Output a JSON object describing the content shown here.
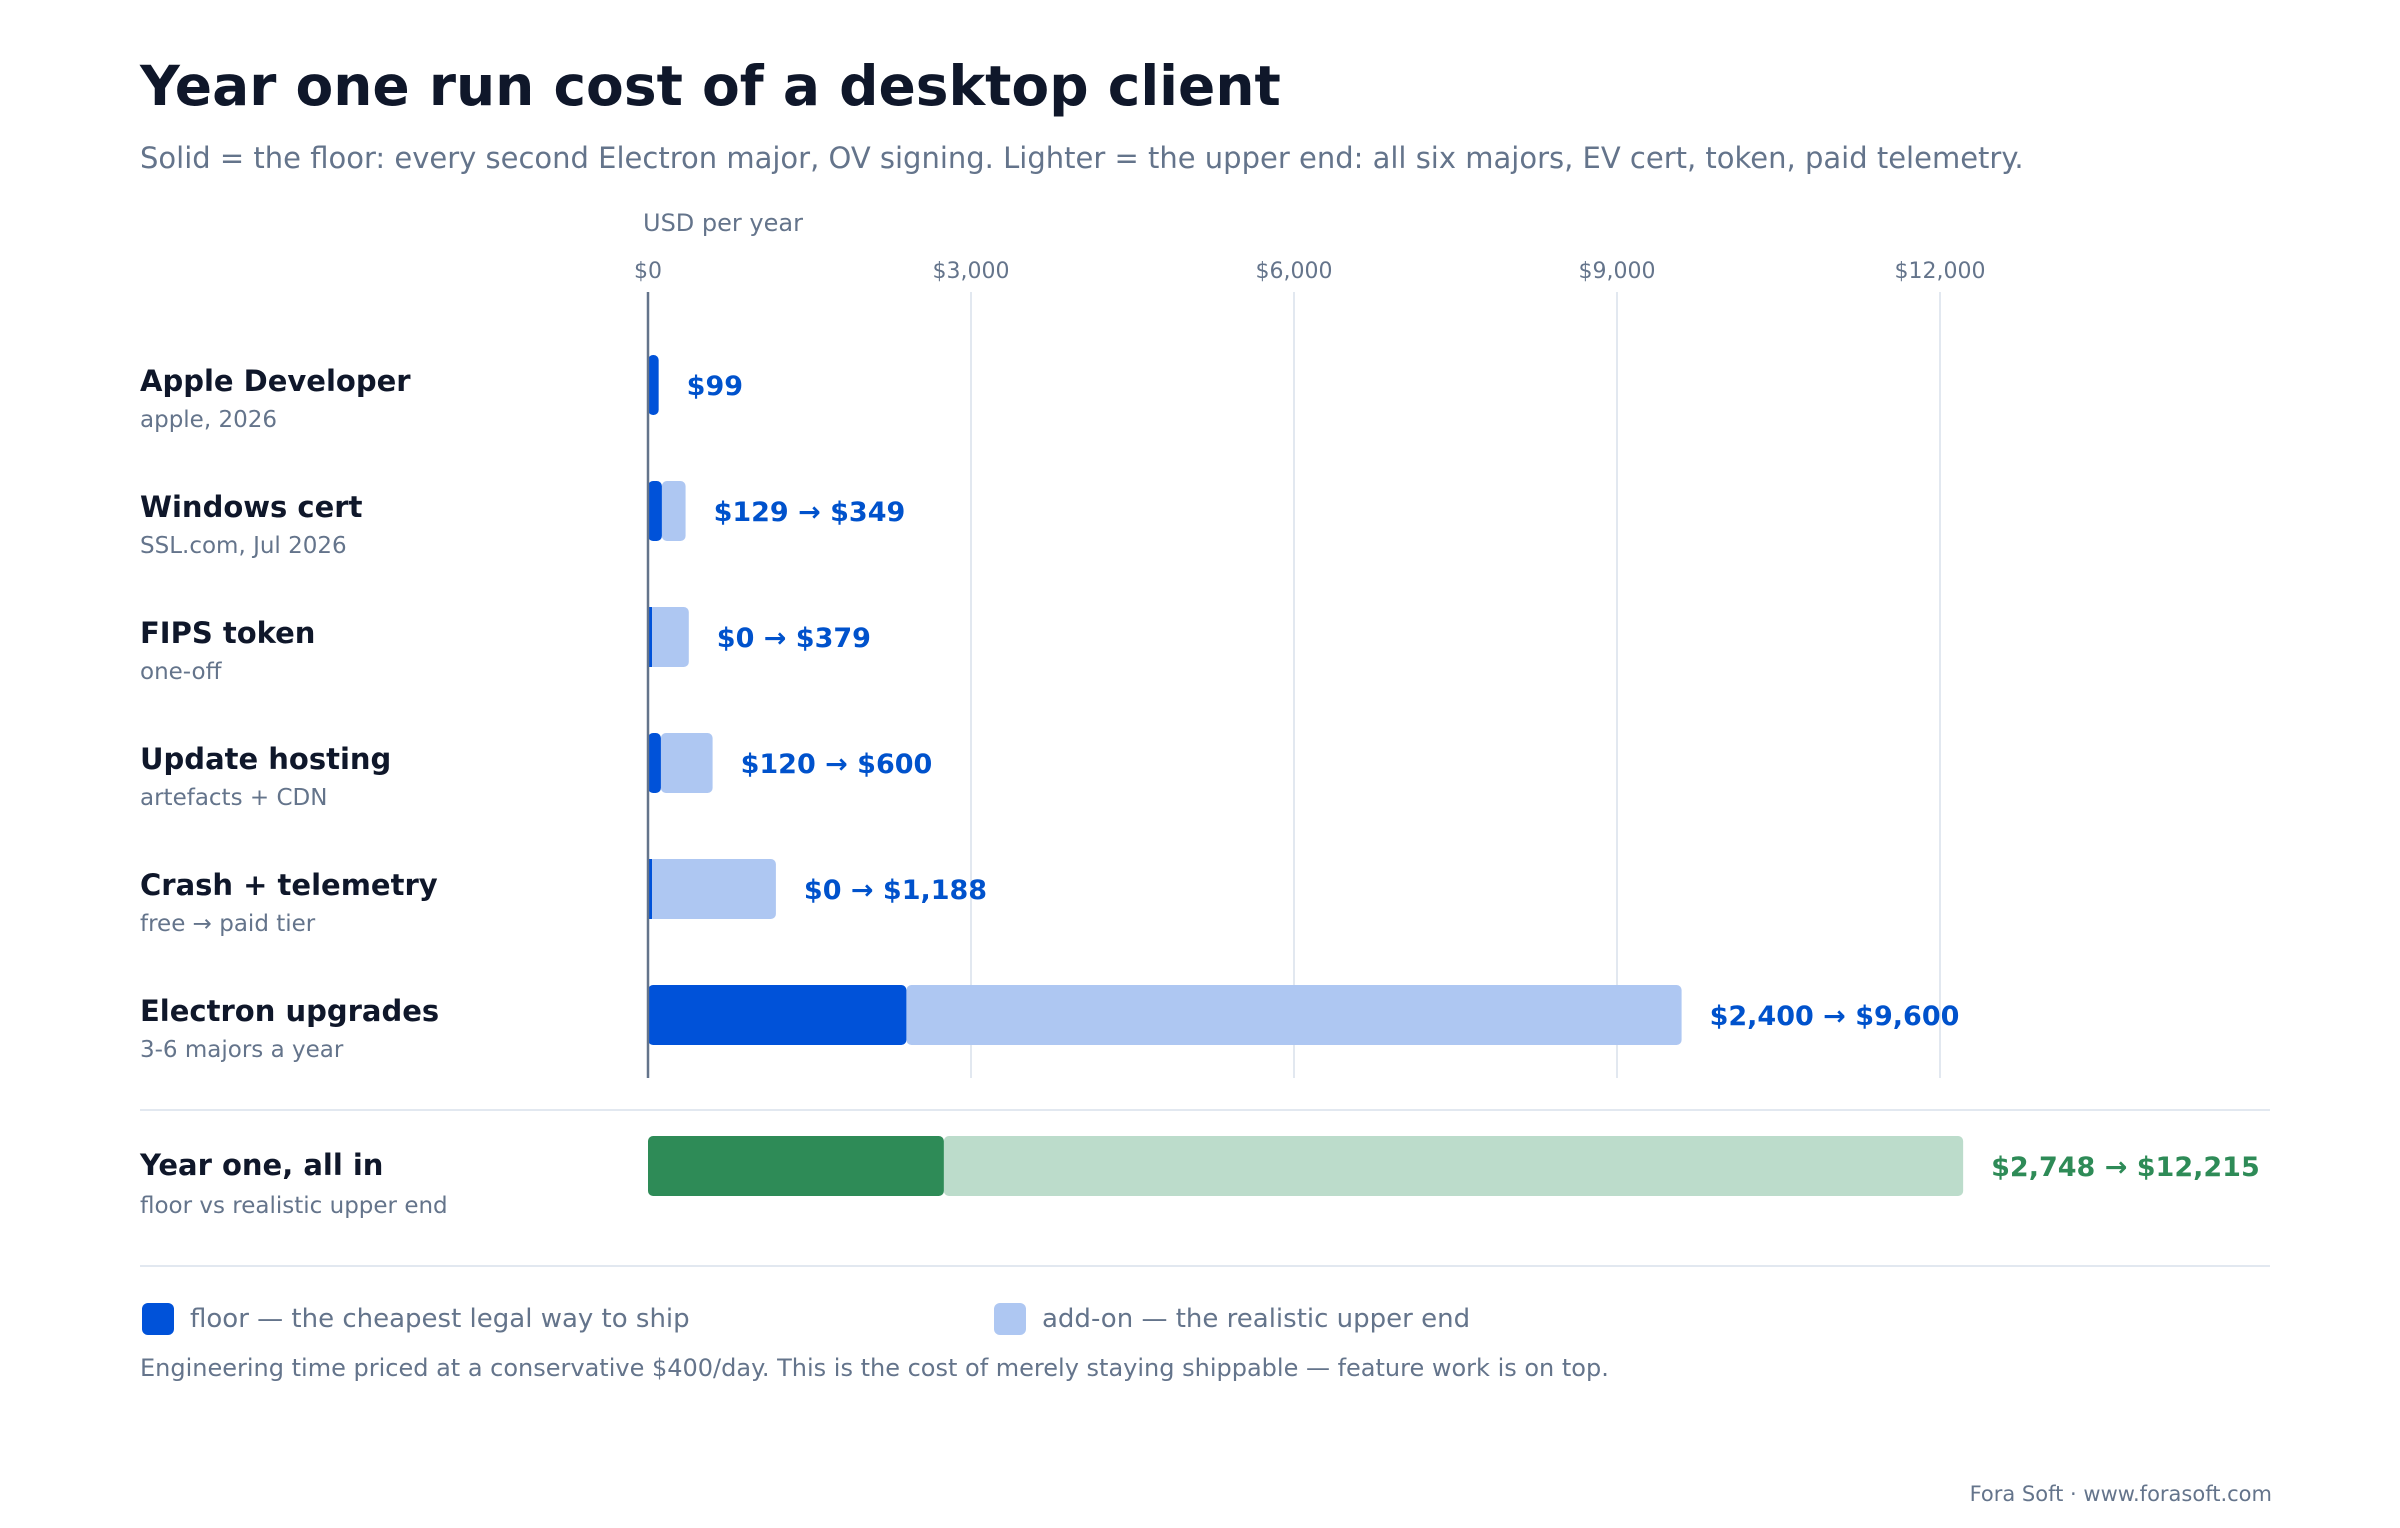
{
  "title": "Year one run cost of a desktop client",
  "subtitle": "Solid = the floor: every second Electron major, OV signing. Lighter = the upper end: all six majors, EV cert, token, paid telemetry.",
  "colors": {
    "floor": "#0052d9",
    "addon": "#aec7f2",
    "total_floor": "#2e8b57",
    "total_addon": "#bcdccb",
    "axis": "#64748b",
    "grid": "#e2e8f0",
    "label_blue": "#0052cc",
    "label_green": "#2e8b57"
  },
  "chart_data": {
    "type": "bar",
    "orientation": "horizontal",
    "stacked": true,
    "axis_label": "USD per year",
    "xlim": [
      0,
      12000
    ],
    "ticks": [
      0,
      3000,
      6000,
      9000,
      12000
    ],
    "tick_labels": [
      "$0",
      "$3,000",
      "$6,000",
      "$9,000",
      "$12,000"
    ],
    "grid": true,
    "series": [
      {
        "name": "floor — the cheapest legal way to ship"
      },
      {
        "name": "add-on — the realistic upper end"
      }
    ],
    "rows": [
      {
        "label": "Apple Developer",
        "sublabel": "apple, 2026",
        "floor": 99,
        "upper": 99,
        "value_label": "$99"
      },
      {
        "label": "Windows cert",
        "sublabel": "SSL.com, Jul 2026",
        "floor": 129,
        "upper": 349,
        "value_label": "$129 → $349"
      },
      {
        "label": "FIPS token",
        "sublabel": "one-off",
        "floor": 0,
        "upper": 379,
        "value_label": "$0 → $379"
      },
      {
        "label": "Update hosting",
        "sublabel": "artefacts + CDN",
        "floor": 120,
        "upper": 600,
        "value_label": "$120 → $600"
      },
      {
        "label": "Crash + telemetry",
        "sublabel": "free → paid tier",
        "floor": 0,
        "upper": 1188,
        "value_label": "$0 → $1,188"
      },
      {
        "label": "Electron upgrades",
        "sublabel": "3-6 majors a year",
        "floor": 2400,
        "upper": 9600,
        "value_label": "$2,400 → $9,600"
      }
    ],
    "total": {
      "label": "Year one, all in",
      "sublabel": "floor vs realistic upper end",
      "floor": 2748,
      "upper": 12215,
      "value_label": "$2,748 → $12,215"
    }
  },
  "legend": [
    {
      "text": "floor — the cheapest legal way to ship"
    },
    {
      "text": "add-on — the realistic upper end"
    }
  ],
  "footnote": "Engineering time priced at a conservative $400/day. This is the cost of merely staying shippable — feature work is on top.",
  "credit": "Fora Soft · www.forasoft.com"
}
